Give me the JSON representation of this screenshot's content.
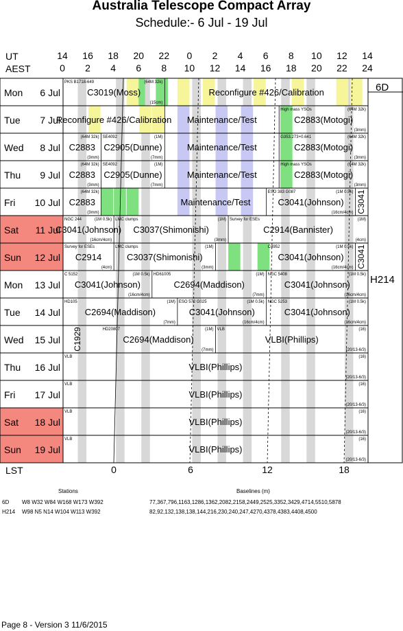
{
  "title": "Australia Telescope Compact Array",
  "subtitle": "Schedule:- 6  Jul - 19 Jul",
  "axis": {
    "ut_label": "UT",
    "aest_label": "AEST",
    "lst_label": "LST",
    "ut_ticks": [
      "14",
      "16",
      "18",
      "20",
      "22",
      "0",
      "2",
      "4",
      "6",
      "8",
      "10",
      "12",
      "14"
    ],
    "aest_ticks": [
      "0",
      "2",
      "4",
      "6",
      "8",
      "10",
      "12",
      "14",
      "16",
      "18",
      "20",
      "22",
      "24"
    ],
    "lst_ticks": [
      "0",
      "6",
      "12",
      "18"
    ]
  },
  "configs": [
    "6D",
    "H214"
  ],
  "days": [
    {
      "dow": "Mon",
      "date": "6  Jul",
      "weekend": false
    },
    {
      "dow": "Tue",
      "date": "7  Jul",
      "weekend": false
    },
    {
      "dow": "Wed",
      "date": "8  Jul",
      "weekend": false
    },
    {
      "dow": "Thu",
      "date": "9  Jul",
      "weekend": false
    },
    {
      "dow": "Fri",
      "date": "10 Jul",
      "weekend": false
    },
    {
      "dow": "Sat",
      "date": "11 Jul",
      "weekend": true
    },
    {
      "dow": "Sun",
      "date": "12 Jul",
      "weekend": true
    },
    {
      "dow": "Mon",
      "date": "13 Jul",
      "weekend": false
    },
    {
      "dow": "Tue",
      "date": "14 Jul",
      "weekend": false
    },
    {
      "dow": "Wed",
      "date": "15 Jul",
      "weekend": false
    },
    {
      "dow": "Thu",
      "date": "16 Jul",
      "weekend": false
    },
    {
      "dow": "Fri",
      "date": "17 Jul",
      "weekend": false
    },
    {
      "dow": "Sat",
      "date": "18 Jul",
      "weekend": true
    },
    {
      "dow": "Sun",
      "date": "19 Jul",
      "weekend": true
    }
  ],
  "colors": {
    "weekend": "#f4877e",
    "yellow": "#f6f59a",
    "green": "#7fe07f",
    "lavender": "#c8c8f4",
    "gray": "#d8d8d8"
  },
  "blocks": [
    {
      "row": 0,
      "start": 0,
      "end": 8,
      "label": "C3019(Moss)",
      "info": "PKS B1718-649",
      "info2": "(64M 32k)",
      "foot": "(15cm)"
    },
    {
      "row": 0,
      "start": 8,
      "end": 24,
      "label": "Reconfigure #426/Calibration",
      "info": "",
      "info2": "",
      "foot": ""
    },
    {
      "row": 1,
      "start": 0,
      "end": 8,
      "label": "Reconfigure #426/Calibration",
      "info": "",
      "info2": "",
      "foot": ""
    },
    {
      "row": 1,
      "start": 8,
      "end": 17,
      "label": "Maintenance/Test",
      "info": "",
      "info2": "",
      "foot": ""
    },
    {
      "row": 1,
      "start": 17,
      "end": 24,
      "label": "C2883(Motogi)",
      "info": "High mass YSOs",
      "info2": "(64M 32k)",
      "foot": "(3mm)"
    },
    {
      "row": 2,
      "start": 0,
      "end": 3,
      "label": "C2883",
      "info": "",
      "info2": "(64M 32k)",
      "foot": "(3mm)"
    },
    {
      "row": 2,
      "start": 3,
      "end": 8,
      "label": "C2905(Dunne)",
      "info": "SE4092",
      "info2": "(1M)",
      "foot": "(7mm)"
    },
    {
      "row": 2,
      "start": 8,
      "end": 17,
      "label": "Maintenance/Test",
      "info": "",
      "info2": "",
      "foot": ""
    },
    {
      "row": 2,
      "start": 17,
      "end": 24,
      "label": "C2883(Motogi)",
      "info": "G353.273+0.641",
      "info2": "(64M 32k)",
      "foot": "(3mm)"
    },
    {
      "row": 3,
      "start": 0,
      "end": 3,
      "label": "C2883",
      "info": "",
      "info2": "(64M 32k)",
      "foot": "(3mm)"
    },
    {
      "row": 3,
      "start": 3,
      "end": 8,
      "label": "C2905(Dunne)",
      "info": "SE4092",
      "info2": "(1M)",
      "foot": "(7mm)"
    },
    {
      "row": 3,
      "start": 8,
      "end": 17,
      "label": "Maintenance/Test",
      "info": "",
      "info2": "",
      "foot": ""
    },
    {
      "row": 3,
      "start": 17,
      "end": 24,
      "label": "C2883(Motogi)",
      "info": "High mass YSOs",
      "info2": "(64M 32k)",
      "foot": "(3mm)"
    },
    {
      "row": 4,
      "start": 0,
      "end": 3,
      "label": "C2883",
      "info": "",
      "info2": "(64M 32k)",
      "foot": "(3mm)"
    },
    {
      "row": 4,
      "start": 8,
      "end": 16,
      "label": "Maintenance/Test",
      "info": "",
      "info2": "",
      "foot": ""
    },
    {
      "row": 4,
      "start": 16,
      "end": 23,
      "label": "C3041(Johnson)",
      "info": "ESO 383 G087",
      "info2": "(1M 0.5k)",
      "foot": "(16cm/4cm)"
    },
    {
      "row": 5,
      "start": 0,
      "end": 4,
      "label": "C3041(Johnson)",
      "info": "NGC 244",
      "info2": "(1M 0.5k)",
      "foot": "(16cm/4cm)"
    },
    {
      "row": 5,
      "start": 4,
      "end": 13,
      "label": "C3037(Shimonishi)",
      "info": "LMC clumps",
      "info2": "(1M)",
      "foot": "(3mm)"
    },
    {
      "row": 5,
      "start": 13,
      "end": 24,
      "label": "C2914(Bannister)",
      "info": "Survey for ESEs",
      "info2": "(1M)",
      "foot": "(4cm)"
    },
    {
      "row": 6,
      "start": 0,
      "end": 4,
      "label": "C2914",
      "info": "Survey for ESEs",
      "info2": "",
      "foot": "(4cm)"
    },
    {
      "row": 6,
      "start": 4,
      "end": 12,
      "label": "C3037(Shimonishi)",
      "info": "LMC clumps",
      "info2": "(1M)",
      "foot": "(3mm)"
    },
    {
      "row": 6,
      "start": 16,
      "end": 23,
      "label": "C3041(Johnson)",
      "info": "C4952",
      "info2": "(1M 0.5k)",
      "foot": "(16cm/4cm)"
    },
    {
      "row": 7,
      "start": 0,
      "end": 7,
      "label": "C3041(Johnson)",
      "info": "C 5152",
      "info2": "(1M 0.5k)",
      "foot": "(16cm/4cm)"
    },
    {
      "row": 7,
      "start": 7,
      "end": 16,
      "label": "C2694(Maddison)",
      "info": "HD61005",
      "info2": "(1M)",
      "foot": "(7mm)"
    },
    {
      "row": 7,
      "start": 16,
      "end": 24,
      "label": "C3041(Johnson)",
      "info": "NGC 5408",
      "info2": "(1M 0.5k)",
      "foot": "(16cm/4cm)"
    },
    {
      "row": 8,
      "start": 0,
      "end": 9,
      "label": "C2694(Maddison)",
      "info": "HD105",
      "info2": "(1M)",
      "foot": "(7mm)"
    },
    {
      "row": 8,
      "start": 9,
      "end": 16,
      "label": "C3041(Johnson)",
      "info": "ESO 572 G025",
      "info2": "(1M 0.5k)",
      "foot": "(16cm/4cm)"
    },
    {
      "row": 8,
      "start": 16,
      "end": 24,
      "label": "C3041(Johnson)",
      "info": "NGC 5253",
      "info2": "(1M 0.5k)",
      "foot": "(16cm/4cm)"
    },
    {
      "row": 9,
      "start": 3,
      "end": 12,
      "label": "C2694(Maddison)",
      "info": "HD20807",
      "info2": "(1M)",
      "foot": "(7mm)"
    },
    {
      "row": 9,
      "start": 12,
      "end": 24,
      "label": "VLBI(Phillips)",
      "info": "VLB",
      "info2": "(16)",
      "foot": "(20/13-6/3)"
    },
    {
      "row": 10,
      "start": 0,
      "end": 24,
      "label": "VLBI(Phillips)",
      "info": "VLB",
      "info2": "(16)",
      "foot": "(20/13-6/3)"
    },
    {
      "row": 11,
      "start": 0,
      "end": 24,
      "label": "VLBI(Phillips)",
      "info": "VLB",
      "info2": "(16)",
      "foot": "(20/13-6/3)"
    },
    {
      "row": 12,
      "start": 0,
      "end": 24,
      "label": "VLBI(Phillips)",
      "info": "VLB",
      "info2": "(16)",
      "foot": "(20/13-6/3)"
    },
    {
      "row": 13,
      "start": 0,
      "end": 24,
      "label": "VLBI(Phillips)",
      "info": "VLB",
      "info2": "(16)",
      "foot": "(20/13-6/3)"
    }
  ],
  "vertical_labels": [
    {
      "row": 4,
      "text": "C3041"
    },
    {
      "row": 6,
      "text": "C3041"
    },
    {
      "row": 9,
      "text": "C1929"
    }
  ],
  "stations": {
    "header": "Stations",
    "baselines_header": "Baselines (m)",
    "rows": [
      {
        "config": "6D",
        "stations": "W8 W32 W84 W168 W173 W392",
        "baselines": "77,367,796,1163,1286,1362,2082,2158,2449,2525,3352,3429,4714,5510,5878"
      },
      {
        "config": "H214",
        "stations": "W98 N5 N14 W104 W113 W392",
        "baselines": "82,92,132,138,138,144,216,230,240,247,4270,4378,4383,4408,4500"
      }
    ]
  },
  "footer": "Page 8 - Version 3  11/6/2015"
}
